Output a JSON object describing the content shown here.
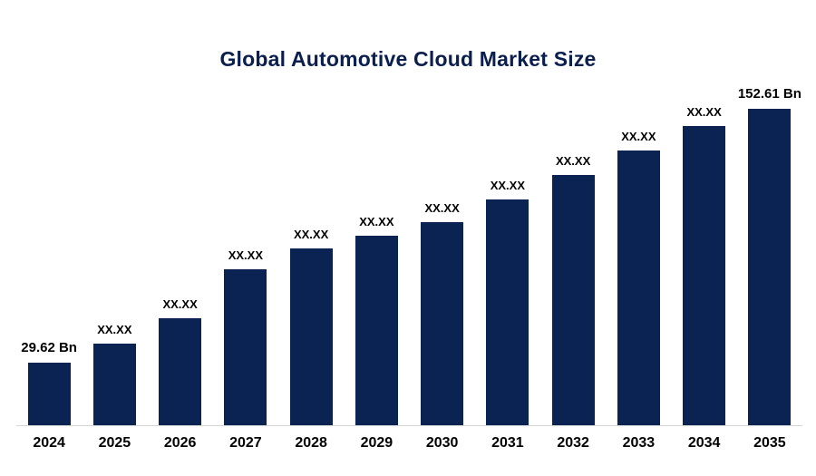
{
  "chart_data": {
    "type": "bar",
    "title": "Global Automotive Cloud Market Size",
    "categories": [
      "2024",
      "2025",
      "2026",
      "2027",
      "2028",
      "2029",
      "2030",
      "2031",
      "2032",
      "2033",
      "2034",
      "2035"
    ],
    "values": [
      29.62,
      38.5,
      50.5,
      73.5,
      83.5,
      89.5,
      96,
      106.5,
      118,
      129.5,
      141,
      152.61
    ],
    "bar_labels": [
      "29.62 Bn",
      "XX.XX",
      "XX.XX",
      "XX.XX",
      "XX.XX",
      "XX.XX",
      "XX.XX",
      "XX.XX",
      "XX.XX",
      "XX.XX",
      "XX.XX",
      "152.61 Bn"
    ],
    "xlabel": "",
    "ylabel": "",
    "ylim": [
      0,
      160
    ],
    "grid": false,
    "legend": "none",
    "bar_color": "#0a2353",
    "title_color": "#0b1f4e",
    "axis_line_color": "#d6d6d6",
    "background_color": "#ffffff",
    "units": "Bn"
  }
}
